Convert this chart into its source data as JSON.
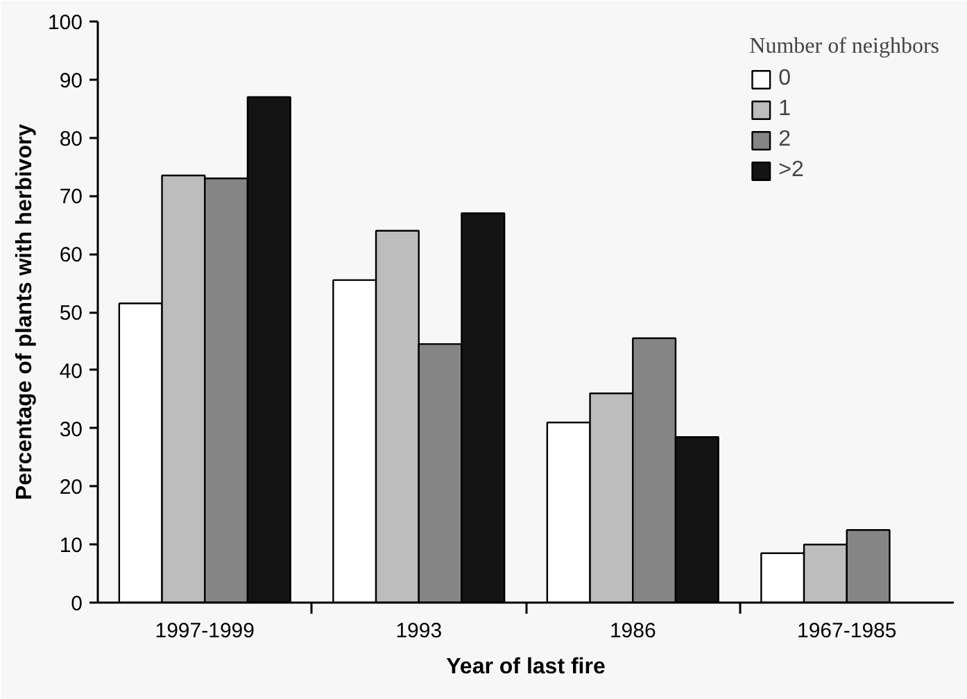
{
  "chart_data": {
    "type": "bar",
    "xlabel": "Year of last fire",
    "ylabel": "Percentage of plants with herbivory",
    "legend_title": "Number of neighbors",
    "categories": [
      "1997-1999",
      "1993",
      "1986",
      "1967-1985"
    ],
    "series": [
      {
        "name": "0",
        "color": "#ffffff",
        "values": [
          51.5,
          55.5,
          31,
          8.5
        ]
      },
      {
        "name": "1",
        "color": "#bdbdbd",
        "values": [
          73.5,
          64,
          36,
          10
        ]
      },
      {
        "name": "2",
        "color": "#858585",
        "values": [
          73,
          44.5,
          45.5,
          12.5
        ]
      },
      {
        "name": ">2",
        "color": "#141414",
        "values": [
          87,
          67,
          28.5,
          null
        ]
      }
    ],
    "ylim": [
      0,
      100
    ],
    "yticks": [
      0,
      10,
      20,
      30,
      40,
      50,
      60,
      70,
      80,
      90,
      100
    ],
    "grid": false,
    "legend": "top right"
  }
}
